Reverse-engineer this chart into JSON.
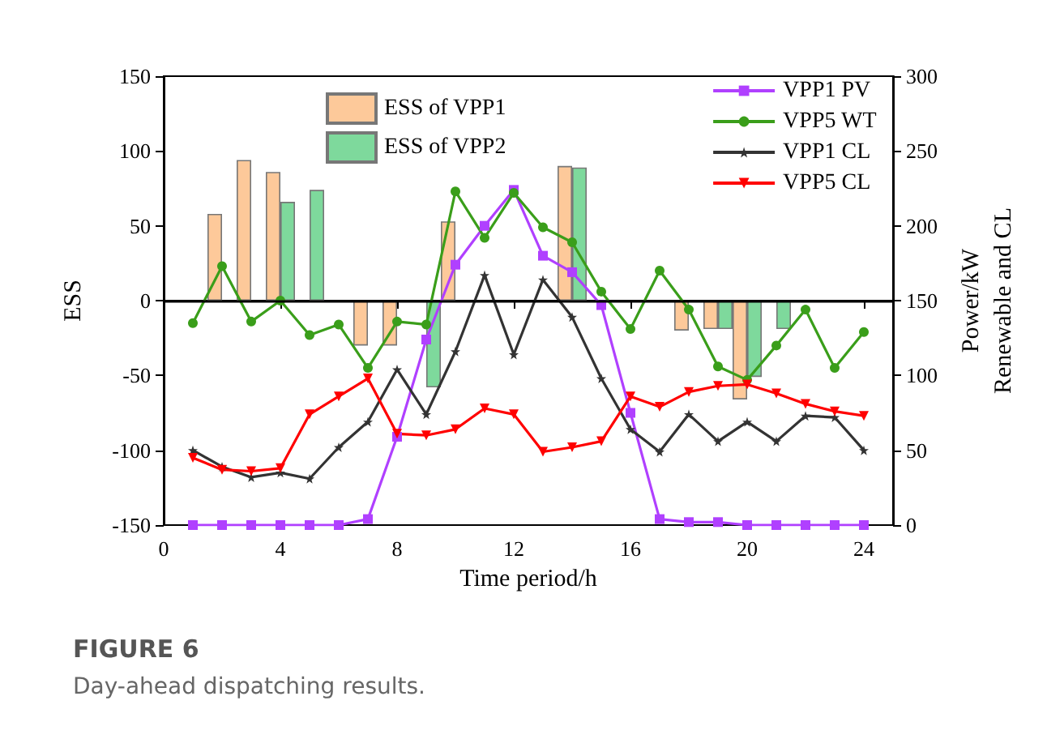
{
  "chart_data": {
    "type": "bar",
    "title": "FIGURE 6",
    "subtitle": "Day-ahead dispatching results.",
    "xlabel": "Time period/h",
    "ylabel": "ESS",
    "y2label": "Power/kW\nRenewable and CL",
    "x": [
      1,
      2,
      3,
      4,
      5,
      6,
      7,
      8,
      9,
      10,
      11,
      12,
      13,
      14,
      15,
      16,
      17,
      18,
      19,
      20,
      21,
      22,
      23,
      24
    ],
    "series": [
      {
        "name": "ESS of VPP1",
        "color": "#fdc99a",
        "values": [
          null,
          58,
          94,
          86,
          null,
          null,
          -30,
          -30,
          null,
          53,
          null,
          null,
          null,
          90,
          null,
          null,
          null,
          -20,
          -19,
          -66,
          null,
          null,
          null,
          null
        ]
      },
      {
        "name": "ESS of VPP2",
        "color": "#7ed99c",
        "values": [
          null,
          null,
          null,
          66,
          74,
          null,
          null,
          null,
          -58,
          null,
          null,
          null,
          null,
          89,
          null,
          null,
          null,
          null,
          -19,
          -51,
          -19,
          null,
          null,
          null
        ]
      },
      {
        "name": "VPP1 PV",
        "type": "line",
        "axis": "y2",
        "marker": "square",
        "color": "#b040ff",
        "values": [
          0,
          0,
          0,
          0,
          0,
          0,
          4,
          59,
          124,
          174,
          200,
          224,
          180,
          169,
          147,
          75,
          4,
          2,
          2,
          0,
          0,
          0,
          0,
          0
        ]
      },
      {
        "name": "VPP5 WT",
        "type": "line",
        "axis": "y2",
        "marker": "circle",
        "color": "#3a9e1a",
        "values": [
          135,
          173,
          136,
          150,
          127,
          134,
          105,
          136,
          134,
          223,
          192,
          222,
          199,
          189,
          156,
          131,
          170,
          144,
          106,
          97,
          120,
          144,
          105,
          129
        ]
      },
      {
        "name": "VPP1 CL",
        "type": "line",
        "axis": "y2",
        "marker": "star",
        "color": "#333333",
        "values": [
          50,
          39,
          32,
          35,
          31,
          52,
          69,
          104,
          74,
          116,
          167,
          114,
          164,
          139,
          98,
          64,
          49,
          74,
          56,
          69,
          56,
          73,
          72,
          50
        ]
      },
      {
        "name": "VPP5 CL",
        "type": "line",
        "axis": "y2",
        "marker": "triangle",
        "color": "#ff0000",
        "values": [
          45,
          37,
          36,
          38,
          74,
          86,
          98,
          61,
          60,
          64,
          78,
          74,
          49,
          52,
          56,
          86,
          79,
          89,
          93,
          94,
          88,
          81,
          76,
          73
        ]
      }
    ],
    "xlim": [
      0,
      25
    ],
    "xticks": [
      0,
      4,
      8,
      12,
      16,
      20,
      24
    ],
    "ylim": [
      -150,
      150
    ],
    "yticks": [
      -150,
      -100,
      -50,
      0,
      50,
      100,
      150
    ],
    "y2lim": [
      0,
      300
    ],
    "y2ticks": [
      0,
      50,
      100,
      150,
      200,
      250,
      300
    ],
    "ref_lines": [
      {
        "axis": "y",
        "value": 0,
        "color": "#000000"
      }
    ],
    "grid": false,
    "legend": "top right"
  }
}
